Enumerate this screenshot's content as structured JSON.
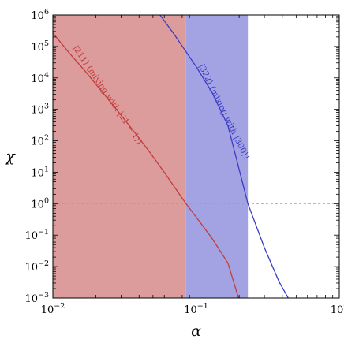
{
  "chart_data": {
    "type": "line",
    "xlabel": "α",
    "ylabel": "χ",
    "x_scale": "log",
    "y_scale": "log",
    "xlim": [
      0.01,
      1
    ],
    "ylim": [
      0.001,
      1000000
    ],
    "grid": false,
    "x_ticks": [
      {
        "value": 0.01,
        "base": "10",
        "exp": "−2"
      },
      {
        "value": 0.1,
        "base": "10",
        "exp": "−1"
      },
      {
        "value": 1,
        "base": "10",
        "exp": "0"
      }
    ],
    "y_ticks": [
      {
        "value": 0.001,
        "base": "10",
        "exp": "−3"
      },
      {
        "value": 0.01,
        "base": "10",
        "exp": "−2"
      },
      {
        "value": 0.1,
        "base": "10",
        "exp": "−1"
      },
      {
        "value": 1,
        "base": "10",
        "exp": "0"
      },
      {
        "value": 10,
        "base": "10",
        "exp": "1"
      },
      {
        "value": 100,
        "base": "10",
        "exp": "2"
      },
      {
        "value": 1000,
        "base": "10",
        "exp": "3"
      },
      {
        "value": 10000,
        "base": "10",
        "exp": "4"
      },
      {
        "value": 100000,
        "base": "10",
        "exp": "5"
      },
      {
        "value": 1000000,
        "base": "10",
        "exp": "6"
      }
    ],
    "regions": [
      {
        "x_from": 0.01,
        "x_to": 0.085,
        "color": "#dc9c9c"
      },
      {
        "x_from": 0.085,
        "x_to": 0.23,
        "color": "#a3a3e4"
      }
    ],
    "reference_lines": [
      {
        "orientation": "horizontal",
        "y": 1,
        "style": "dashed",
        "color": "#a0a0a0"
      }
    ],
    "series": [
      {
        "name": "|211⟩ (mixing with |21 − 1⟩)",
        "color": "#c33c3c",
        "x": [
          0.01,
          0.0129,
          0.0167,
          0.0215,
          0.0278,
          0.0359,
          0.0464,
          0.0599,
          0.085,
          0.1,
          0.129,
          0.167,
          0.198
        ],
        "y": [
          270000,
          65000,
          17000,
          4200,
          1000,
          230,
          50,
          10,
          1,
          0.38,
          0.08,
          0.013,
          0.001
        ]
      },
      {
        "name": "|322⟩ (mixing with |300⟩)",
        "color": "#3c3cc3",
        "x": [
          0.056,
          0.07,
          0.1,
          0.129,
          0.167,
          0.23,
          0.3,
          0.38,
          0.44
        ],
        "y": [
          1000000,
          250000,
          23000,
          3500,
          300,
          1,
          0.04,
          0.0033,
          0.001
        ]
      }
    ]
  }
}
